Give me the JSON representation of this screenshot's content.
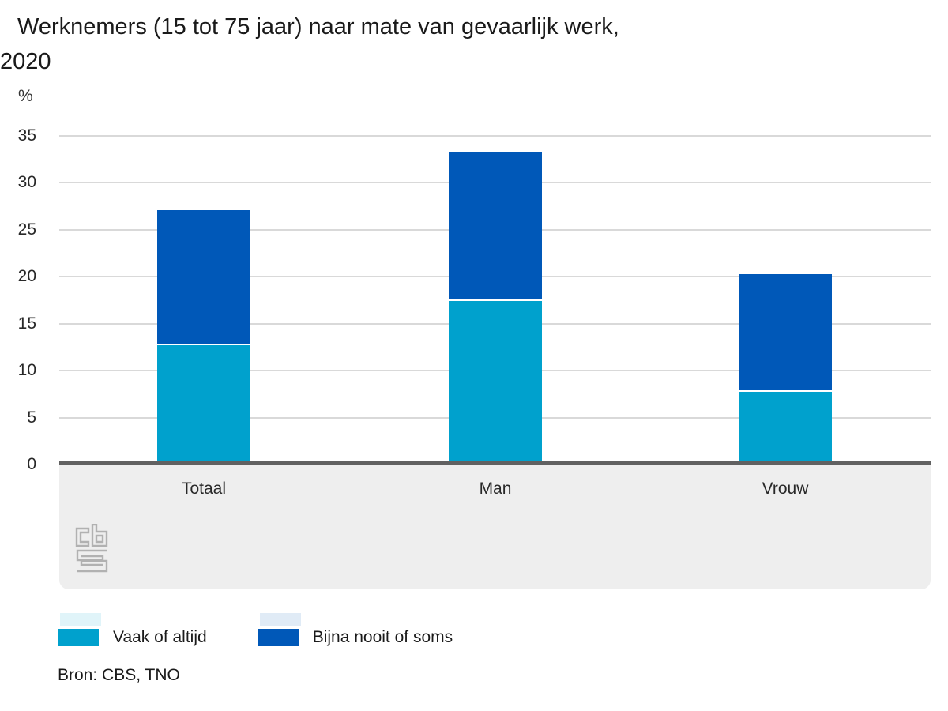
{
  "title": {
    "line1": "Werknemers (15 tot 75 jaar) naar mate van gevaarlijk werk,",
    "line2": "2020"
  },
  "y_axis": {
    "unit": "%",
    "ticks": [
      0,
      5,
      10,
      15,
      20,
      25,
      30,
      35
    ],
    "max": 35
  },
  "chart_data": {
    "type": "bar",
    "stacked": true,
    "title": "Werknemers (15 tot 75 jaar) naar mate van gevaarlijk werk, 2020",
    "categories": [
      "Totaal",
      "Man",
      "Vrouw"
    ],
    "series": [
      {
        "name": "Vaak of altijd",
        "color": "#00a1cd",
        "values": [
          12.7,
          17.4,
          7.7
        ]
      },
      {
        "name": "Bijna nooit of soms",
        "color": "#0058b8",
        "values": [
          14.4,
          15.9,
          12.5
        ]
      }
    ],
    "totals": [
      27.1,
      33.3,
      20.2
    ],
    "xlabel": "",
    "ylabel": "%",
    "ylim": [
      0,
      35
    ],
    "grid": true,
    "legend_position": "bottom"
  },
  "source": "Bron: CBS, TNO",
  "colors": {
    "series_light_blue": "#00a1cd",
    "series_dark_blue": "#0058b8",
    "gridline": "#d9d9d9",
    "axis_line": "#616161",
    "panel_background": "#eeeeee",
    "logo_gray": "#b1b1b1",
    "text": "#1a1a1a"
  },
  "logo": {
    "icon": "cbs-logo"
  }
}
